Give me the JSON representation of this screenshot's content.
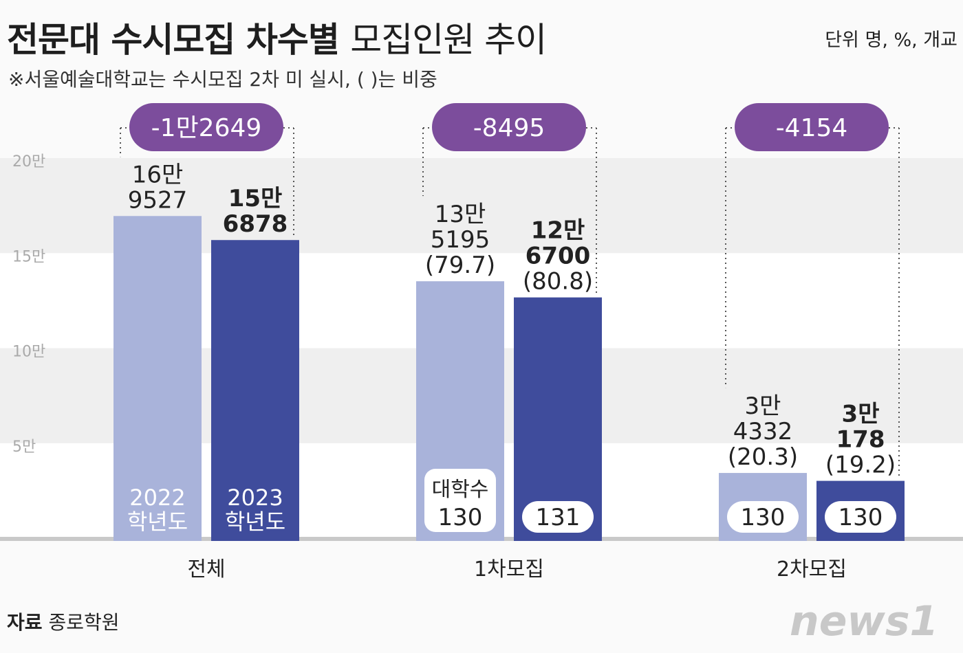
{
  "title_main": "전문대 수시모집 차수별",
  "title_sub": "모집인원 추이",
  "subtitle": "※서울예술대학교는 수시모집 2차 미 실시, ( )는 비중",
  "unit": "단위 명, %, 개교",
  "source_label": "자료",
  "source_value": "종로학원",
  "logo_text": "news1",
  "colors": {
    "y2022": "#a9b3da",
    "y2023": "#3f4c9c",
    "pill": "#7c4d9c"
  },
  "chart_data": {
    "type": "bar",
    "categories": [
      "전체",
      "1차모집",
      "2차모집"
    ],
    "series": [
      {
        "name": "2022 학년도",
        "values": [
          169527,
          135195,
          34332
        ],
        "value_labels": [
          [
            "16만",
            "9527"
          ],
          [
            "13만",
            "5195"
          ],
          [
            "3만",
            "4332"
          ]
        ],
        "shares": [
          "",
          "(79.7)",
          "(20.3)"
        ],
        "schools": [
          "",
          "130",
          "130"
        ]
      },
      {
        "name": "2023 학년도",
        "values": [
          156878,
          126700,
          30178
        ],
        "value_labels": [
          [
            "15만",
            "6878"
          ],
          [
            "12만",
            "6700"
          ],
          [
            "3만",
            "178"
          ]
        ],
        "shares": [
          "",
          "(80.8)",
          "(19.2)"
        ],
        "schools": [
          "",
          "131",
          "130"
        ]
      }
    ],
    "differences": [
      "-1만2649",
      "-8495",
      "-4154"
    ],
    "school_note": "대학수",
    "bar_labels": [
      [
        "2022",
        "학년도"
      ],
      [
        "2023",
        "학년도"
      ]
    ],
    "yticks": [
      "5만",
      "10만",
      "15만",
      "20만"
    ],
    "ylim": [
      0,
      200000
    ]
  }
}
